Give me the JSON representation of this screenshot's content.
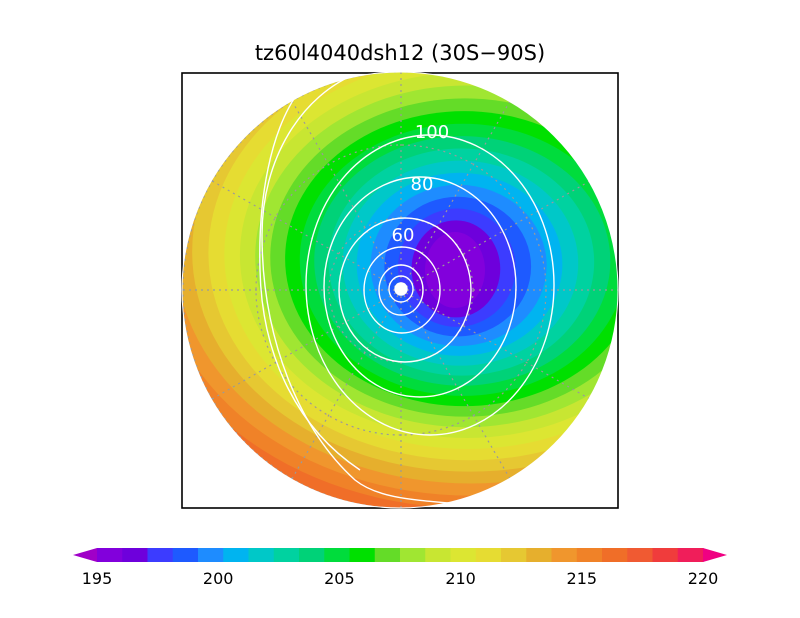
{
  "chart_data": {
    "type": "heatmap",
    "title": "tz60l4040dsh12 (30S−90S)",
    "projection": "polar-stereographic",
    "region": "30S−90S",
    "grid": true,
    "colorbar": {
      "orientation": "horizontal",
      "position": "bottom",
      "min": 195,
      "max": 220,
      "step": 1,
      "extend": "both",
      "tick_labels": [
        "195",
        "200",
        "205",
        "210",
        "215",
        "220"
      ],
      "colors": [
        "#a000c8",
        "#8200dc",
        "#6e00dc",
        "#3c3cff",
        "#1e5aff",
        "#1e8cff",
        "#00b4f0",
        "#00c8c8",
        "#00d2a0",
        "#00d278",
        "#00dc3c",
        "#00e000",
        "#64dc28",
        "#a0e632",
        "#c8e632",
        "#dce632",
        "#e6dc32",
        "#e6c832",
        "#e6af2d",
        "#f0962d",
        "#f08228",
        "#f06e28",
        "#f05a32",
        "#f03c3c",
        "#f01e5a",
        "#f00082"
      ]
    },
    "contours": {
      "color": "#ffffff",
      "labels": [
        "60",
        "80",
        "100"
      ]
    },
    "annotations": {
      "cold_center_value": 196,
      "warm_edge_value": 219
    }
  }
}
